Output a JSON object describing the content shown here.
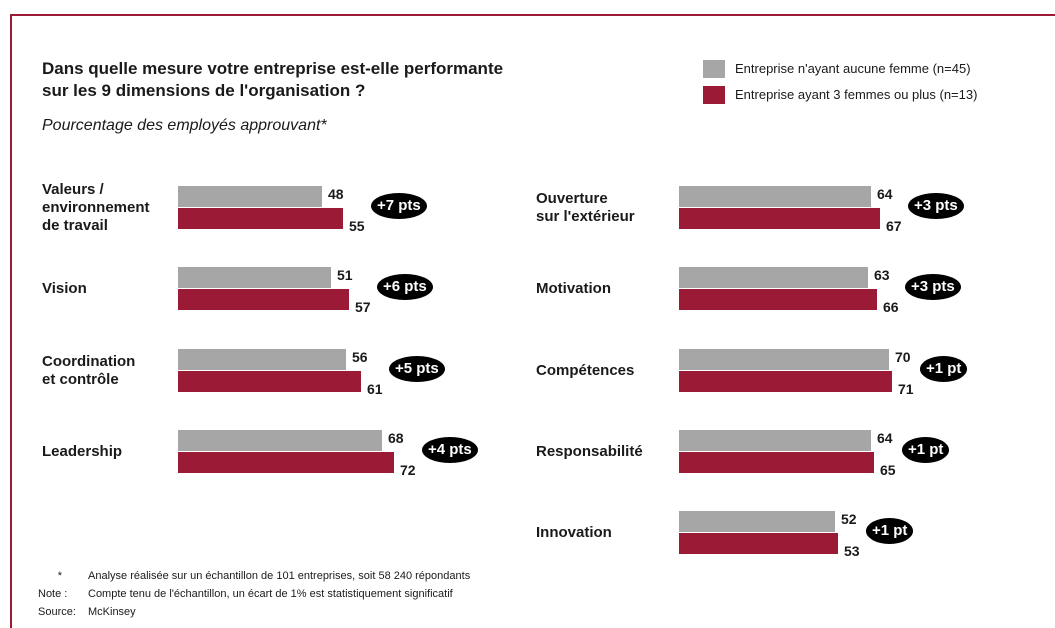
{
  "chart_data": {
    "type": "bar",
    "title": "Dans quelle mesure votre entreprise est-elle performante\nsur les 9 dimensions de l'organisation ?",
    "subtitle": "Pourcentage des employés approuvant*",
    "categories": [
      "Valeurs /\nenvironnement\nde travail",
      "Vision",
      "Coordination\net contrôle",
      "Leadership",
      "Ouverture\nsur l'extérieur",
      "Motivation",
      "Compétences",
      "Responsabilité",
      "Innovation"
    ],
    "series": [
      {
        "name": "Entreprise n'ayant aucune femme (n=45)",
        "color": "#a6a6a6",
        "values": [
          48,
          51,
          56,
          68,
          64,
          63,
          70,
          64,
          52
        ]
      },
      {
        "name": "Entreprise ayant 3 femmes ou plus (n=13)",
        "color": "#9b1b36",
        "values": [
          55,
          57,
          61,
          72,
          67,
          66,
          71,
          65,
          53
        ]
      }
    ],
    "difference_labels": [
      "+7 pts",
      "+6 pts",
      "+5 pts",
      "+4 pts",
      "+3 pts",
      "+3 pts",
      "+1 pt",
      "+1 pt",
      "+1 pt"
    ],
    "notes": [
      {
        "marker": "*",
        "text": "Analyse réalisée sur un échantillon de 101 entreprises, soit 58 240 répondants"
      },
      {
        "marker": "Note :",
        "text": "Compte tenu de l'échantillon, un écart de 1% est statistiquement significatif"
      },
      {
        "marker": "Source:",
        "text": "McKinsey"
      }
    ]
  }
}
